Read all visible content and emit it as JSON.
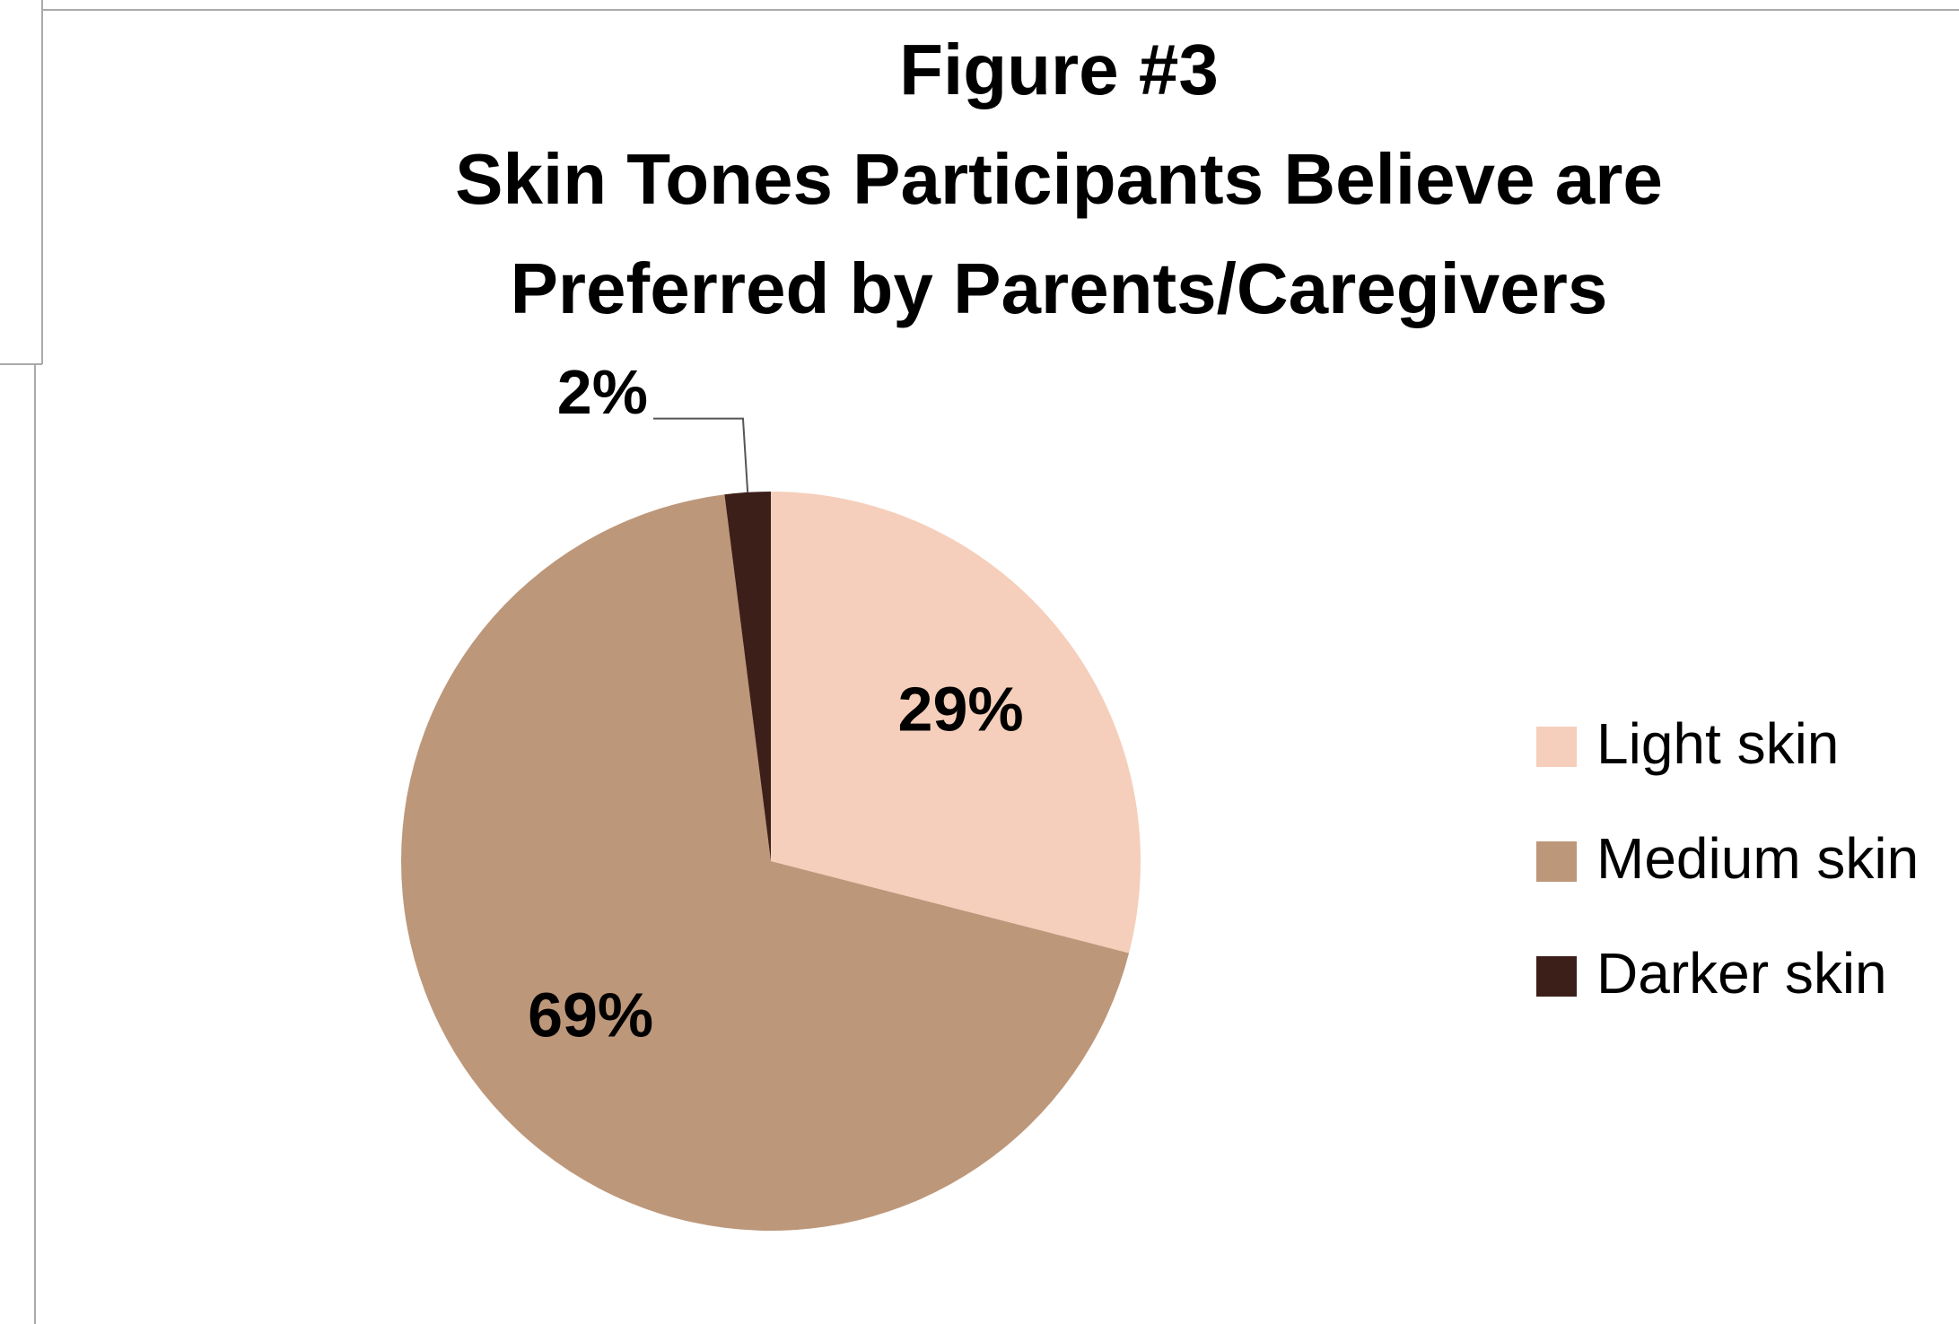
{
  "chart_data": {
    "type": "pie",
    "title": [
      "Figure #3",
      "Skin Tones Participants Believe are",
      "Preferred by Parents/Caregivers"
    ],
    "categories": [
      "Light skin",
      "Medium skin",
      "Darker skin"
    ],
    "values": [
      29,
      69,
      2
    ],
    "value_labels": [
      "29%",
      "69%",
      "2%"
    ],
    "colors": [
      "#f5cfbb",
      "#bd977a",
      "#3d1f19"
    ],
    "legend": "right"
  }
}
